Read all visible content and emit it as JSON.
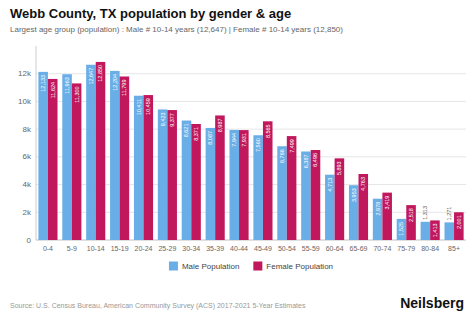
{
  "chart_data": {
    "type": "bar",
    "title": "Webb County, TX population by gender & age",
    "subtitle": "Largest age group (population) : Male # 10-14 years (12,647) | Female # 10-14 years (12,850)",
    "categories": [
      "0-4",
      "5-9",
      "10-14",
      "15-19",
      "20-24",
      "25-29",
      "30-34",
      "35-39",
      "40-44",
      "45-49",
      "50-54",
      "55-59",
      "60-64",
      "65-69",
      "70-74",
      "75-79",
      "80-84",
      "85+"
    ],
    "series": [
      {
        "name": "Male Population",
        "color": "#6aaee8",
        "values": [
          12133,
          11963,
          12647,
          12204,
          10411,
          9423,
          8621,
          8087,
          7944,
          7560,
          6766,
          6387,
          4713,
          3953,
          2978,
          1525,
          1313,
          1271
        ],
        "value_labels": [
          "12,133",
          "11,963",
          "12,647",
          "12,204",
          "10,411",
          "9,423",
          "8,621",
          "8,087",
          "7,944",
          "7,560",
          "6,766",
          "6,387",
          "4,713",
          "3,953",
          "2,978",
          "1,525",
          "1,313",
          "1,271"
        ]
      },
      {
        "name": "Female Population",
        "color": "#C0175D",
        "values": [
          11624,
          11300,
          12850,
          11799,
          10459,
          9377,
          8371,
          8987,
          7931,
          8565,
          7499,
          6496,
          5893,
          4763,
          3419,
          2518,
          1413,
          2001
        ],
        "value_labels": [
          "11,624",
          "11,300",
          "12,850",
          "11,799",
          "10,459",
          "9,377",
          "8,371",
          "8,987",
          "7,931",
          "8,565",
          "7,499",
          "6,496",
          "5,893",
          "4,763",
          "3,419",
          "2,518",
          "1,413",
          "2,001"
        ]
      }
    ],
    "ylim": [
      0,
      14000
    ],
    "yticks": [
      0,
      {
        "value": 2000,
        "label": "2k"
      },
      {
        "value": 4000,
        "label": "4k"
      },
      {
        "value": 6000,
        "label": "6k"
      },
      {
        "value": 8000,
        "label": "8k"
      },
      {
        "value": 10000,
        "label": "10k"
      },
      {
        "value": 12000,
        "label": "12k"
      }
    ],
    "grid": true,
    "legend": "bottom",
    "data_labels": true,
    "annotations": [
      "Source: U.S. Census Bureau, American Community Survey (ACS) 2017-2021 5-Year Estimates",
      "Neilsberg"
    ]
  }
}
